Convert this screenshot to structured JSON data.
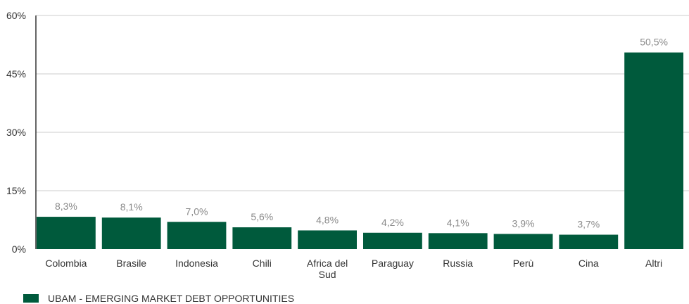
{
  "chart_data": {
    "type": "bar",
    "categories": [
      "Colombia",
      "Brasile",
      "Indonesia",
      "Chili",
      "Africa del Sud",
      "Paraguay",
      "Russia",
      "Perù",
      "Cina",
      "Altri"
    ],
    "category_lines": [
      [
        "Colombia"
      ],
      [
        "Brasile"
      ],
      [
        "Indonesia"
      ],
      [
        "Chili"
      ],
      [
        "Africa del",
        "Sud"
      ],
      [
        "Paraguay"
      ],
      [
        "Russia"
      ],
      [
        "Perù"
      ],
      [
        "Cina"
      ],
      [
        "Altri"
      ]
    ],
    "series": [
      {
        "name": "UBAM - EMERGING MARKET DEBT OPPORTUNITIES",
        "values": [
          8.3,
          8.1,
          7.0,
          5.6,
          4.8,
          4.2,
          4.1,
          3.9,
          3.7,
          50.5
        ],
        "value_labels": [
          "8,3%",
          "8,1%",
          "7,0%",
          "5,6%",
          "4,8%",
          "4,2%",
          "4,1%",
          "3,9%",
          "3,7%",
          "50,5%"
        ]
      }
    ],
    "ylim": [
      0,
      60
    ],
    "yticks": [
      0,
      15,
      30,
      45,
      60
    ],
    "ytick_labels": [
      "0%",
      "15%",
      "30%",
      "45%",
      "60%"
    ],
    "grid": true,
    "legend_position": "bottom-left",
    "colors": {
      "bar": "#005a3c",
      "grid": "#cccccc",
      "axis": "#333333",
      "data_label": "#8a8a8a"
    }
  }
}
